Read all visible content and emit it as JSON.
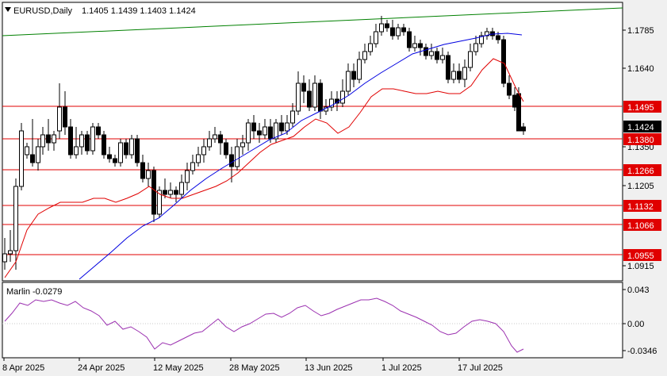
{
  "header": {
    "symbol": "EURUSD,Daily",
    "ohlc": "1.1405 1.1439 1.1403 1.1424"
  },
  "price_axis": {
    "ticks": [
      "1.1785",
      "1.1640",
      "1.1350",
      "1.1205",
      "1.0915"
    ],
    "current_price": "1.1424"
  },
  "levels": [
    "1.1495",
    "1.1380",
    "1.1266",
    "1.1132",
    "1.1066",
    "1.0955"
  ],
  "indicator": {
    "label": "Marlin -0.0279",
    "ticks": [
      "0.043",
      "0.00",
      "-0.0346"
    ]
  },
  "time_axis": {
    "labels": [
      "8 Apr 2025",
      "24 Apr 2025",
      "12 May 2025",
      "28 May 2025",
      "13 Jun 2025",
      "1 Jul 2025",
      "17 Jul 2025"
    ]
  },
  "colors": {
    "background": "#ffffff",
    "chrome": "#f0f0f0",
    "level_line": "#e00000",
    "level_tag": "#e00000",
    "ma_red": "#e00000",
    "ma_blue": "#0000e0",
    "trend_green": "#008000",
    "marlin": "#9b30b0"
  }
}
